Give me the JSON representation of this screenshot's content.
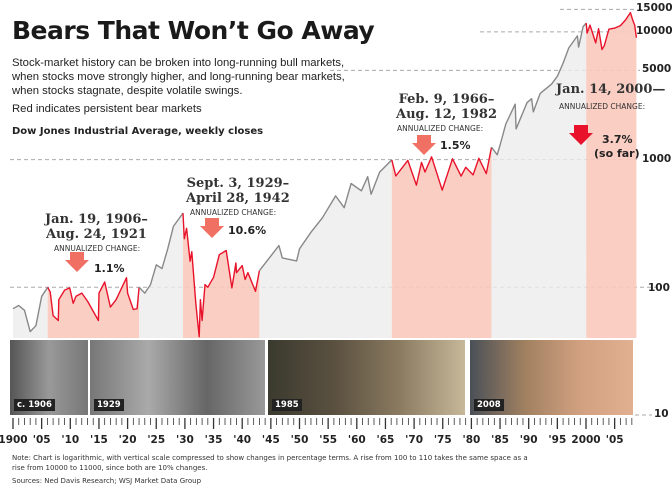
{
  "title": "Bears That Won’t Go Away",
  "subtitle": "Stock-market history can be broken into long-running bull markets, when stocks move strongly higher, and long-running bear markets, when stocks stagnate, despite volatile swings.",
  "red_note": "Red indicates persistent bear markets",
  "series_label": "Dow Jones Industrial Average, weekly closes",
  "note_line1": "Note: Chart is logarithmic, with vertical scale compressed to show changes in percentage terms. A rise from 100 to 110 takes the same space as a",
  "note_line2": "rise from 10000 to 11000, since both are 10% changes.",
  "sources": "Sources: Ned Davis Research; WSJ Market Data Group",
  "photos": [
    {
      "caption": "c. 1906"
    },
    {
      "caption": "1929"
    },
    {
      "caption": "1985"
    },
    {
      "caption": "2008"
    }
  ],
  "colors": {
    "bear_line": "#e8132b",
    "bull_line": "#888888",
    "bear_fill": "#f9c9bd",
    "bull_fill": "#ececec",
    "arrow": "#f07064",
    "arrow_current": "#e8132b"
  },
  "chart_data": {
    "type": "line",
    "y_scale": "log",
    "ylim": [
      10,
      15000
    ],
    "xlim": [
      1900,
      2009
    ],
    "yticks": [
      10,
      100,
      1000,
      5000,
      10000,
      15000
    ],
    "ytick_labels": [
      "10",
      "100",
      "1000",
      "5000",
      "10000",
      "15000"
    ],
    "xtick_labels": [
      "1900",
      "'05",
      "'10",
      "'15",
      "'20",
      "'25",
      "'30",
      "'35",
      "'40",
      "'45",
      "'50",
      "'55",
      "'60",
      "'65",
      "'70",
      "'75",
      "'80",
      "'85",
      "'90",
      "'95",
      "2000",
      "'05"
    ],
    "xticks": [
      1900,
      1905,
      1910,
      1915,
      1920,
      1925,
      1930,
      1935,
      1940,
      1945,
      1950,
      1955,
      1960,
      1965,
      1970,
      1975,
      1980,
      1985,
      1990,
      1995,
      2000,
      2005
    ],
    "grid": "dashed horizontal at 100, 1000, 5000, 10000, 15000",
    "points": [
      [
        1900,
        68
      ],
      [
        1901,
        72
      ],
      [
        1902,
        66
      ],
      [
        1903,
        45
      ],
      [
        1904,
        50
      ],
      [
        1905,
        85
      ],
      [
        1906.05,
        100
      ],
      [
        1906.5,
        92
      ],
      [
        1907,
        60
      ],
      [
        1907.9,
        55
      ],
      [
        1908,
        80
      ],
      [
        1909,
        95
      ],
      [
        1909.9,
        99
      ],
      [
        1910.5,
        75
      ],
      [
        1911,
        85
      ],
      [
        1912,
        90
      ],
      [
        1913,
        78
      ],
      [
        1914.9,
        55
      ],
      [
        1915,
        90
      ],
      [
        1916,
        110
      ],
      [
        1917,
        70
      ],
      [
        1918,
        80
      ],
      [
        1919.8,
        119
      ],
      [
        1920,
        90
      ],
      [
        1921,
        67
      ],
      [
        1921.65,
        68
      ],
      [
        1922,
        100
      ],
      [
        1923,
        90
      ],
      [
        1924,
        105
      ],
      [
        1925,
        150
      ],
      [
        1926,
        140
      ],
      [
        1927,
        200
      ],
      [
        1928,
        300
      ],
      [
        1929.67,
        381
      ],
      [
        1929.9,
        240
      ],
      [
        1930.3,
        290
      ],
      [
        1930.9,
        160
      ],
      [
        1931.2,
        190
      ],
      [
        1931.9,
        75
      ],
      [
        1932.5,
        41
      ],
      [
        1932.7,
        80
      ],
      [
        1933,
        55
      ],
      [
        1933.5,
        105
      ],
      [
        1934,
        100
      ],
      [
        1935,
        120
      ],
      [
        1936,
        180
      ],
      [
        1937.2,
        194
      ],
      [
        1938.2,
        99
      ],
      [
        1938.9,
        155
      ],
      [
        1939,
        130
      ],
      [
        1940,
        148
      ],
      [
        1940.5,
        115
      ],
      [
        1941,
        130
      ],
      [
        1942.32,
        93
      ],
      [
        1943,
        135
      ],
      [
        1946.4,
        212
      ],
      [
        1947,
        170
      ],
      [
        1949.5,
        161
      ],
      [
        1950,
        200
      ],
      [
        1952,
        270
      ],
      [
        1954,
        350
      ],
      [
        1956.3,
        520
      ],
      [
        1957.8,
        420
      ],
      [
        1959,
        650
      ],
      [
        1960.8,
        570
      ],
      [
        1961.9,
        735
      ],
      [
        1962.5,
        536
      ],
      [
        1964,
        800
      ],
      [
        1966.1,
        995
      ],
      [
        1966.8,
        744
      ],
      [
        1968.9,
        985
      ],
      [
        1970.4,
        631
      ],
      [
        1971.3,
        950
      ],
      [
        1971.9,
        800
      ],
      [
        1973.05,
        1051
      ],
      [
        1974.9,
        577
      ],
      [
        1976.7,
        1014
      ],
      [
        1978.2,
        742
      ],
      [
        1979,
        870
      ],
      [
        1980.3,
        759
      ],
      [
        1981.3,
        1024
      ],
      [
        1982.6,
        777
      ],
      [
        1983.5,
        1250
      ],
      [
        1984.5,
        1090
      ],
      [
        1985,
        1300
      ],
      [
        1986,
        1900
      ],
      [
        1987.65,
        2722
      ],
      [
        1987.8,
        1738
      ],
      [
        1989.7,
        2790
      ],
      [
        1990.5,
        2999
      ],
      [
        1990.8,
        2365
      ],
      [
        1992,
        3300
      ],
      [
        1994,
        3900
      ],
      [
        1995,
        4500
      ],
      [
        1996,
        5700
      ],
      [
        1997,
        7500
      ],
      [
        1998.5,
        9300
      ],
      [
        1998.7,
        7600
      ],
      [
        1999.5,
        11000
      ],
      [
        2000.04,
        11723
      ],
      [
        2000.2,
        9800
      ],
      [
        2000.7,
        11300
      ],
      [
        2001.7,
        8200
      ],
      [
        2002.2,
        10600
      ],
      [
        2002.8,
        7286
      ],
      [
        2003.2,
        7800
      ],
      [
        2004,
        10500
      ],
      [
        2005,
        10700
      ],
      [
        2006,
        11200
      ],
      [
        2006.9,
        12400
      ],
      [
        2007.75,
        14164
      ],
      [
        2008.2,
        12200
      ],
      [
        2008.5,
        11300
      ],
      [
        2008.8,
        9000
      ]
    ],
    "bear_markets": [
      {
        "start": 1906.05,
        "end": 1921.65,
        "label1": "Jan. 19, 1906–",
        "label2": "Aug. 24, 1921",
        "annual_label": "ANNUALIZED CHANGE:",
        "change": "1.1%"
      },
      {
        "start": 1929.67,
        "end": 1942.32,
        "label1": "Sept. 3, 1929–",
        "label2": "April 28, 1942",
        "annual_label": "ANNUALIZED CHANGE:",
        "change": "10.6%"
      },
      {
        "start": 1966.1,
        "end": 1982.6,
        "label1": "Feb. 9, 1966–",
        "label2": "Aug. 12, 1982",
        "annual_label": "ANNUALIZED CHANGE:",
        "change": "1.5%"
      },
      {
        "start": 2000.04,
        "end": 2008.8,
        "label1": "Jan. 14, 2000—",
        "label2": "",
        "annual_label": "ANNUALIZED CHANGE:",
        "change": "3.7%",
        "change_note": "(so far)"
      }
    ]
  }
}
